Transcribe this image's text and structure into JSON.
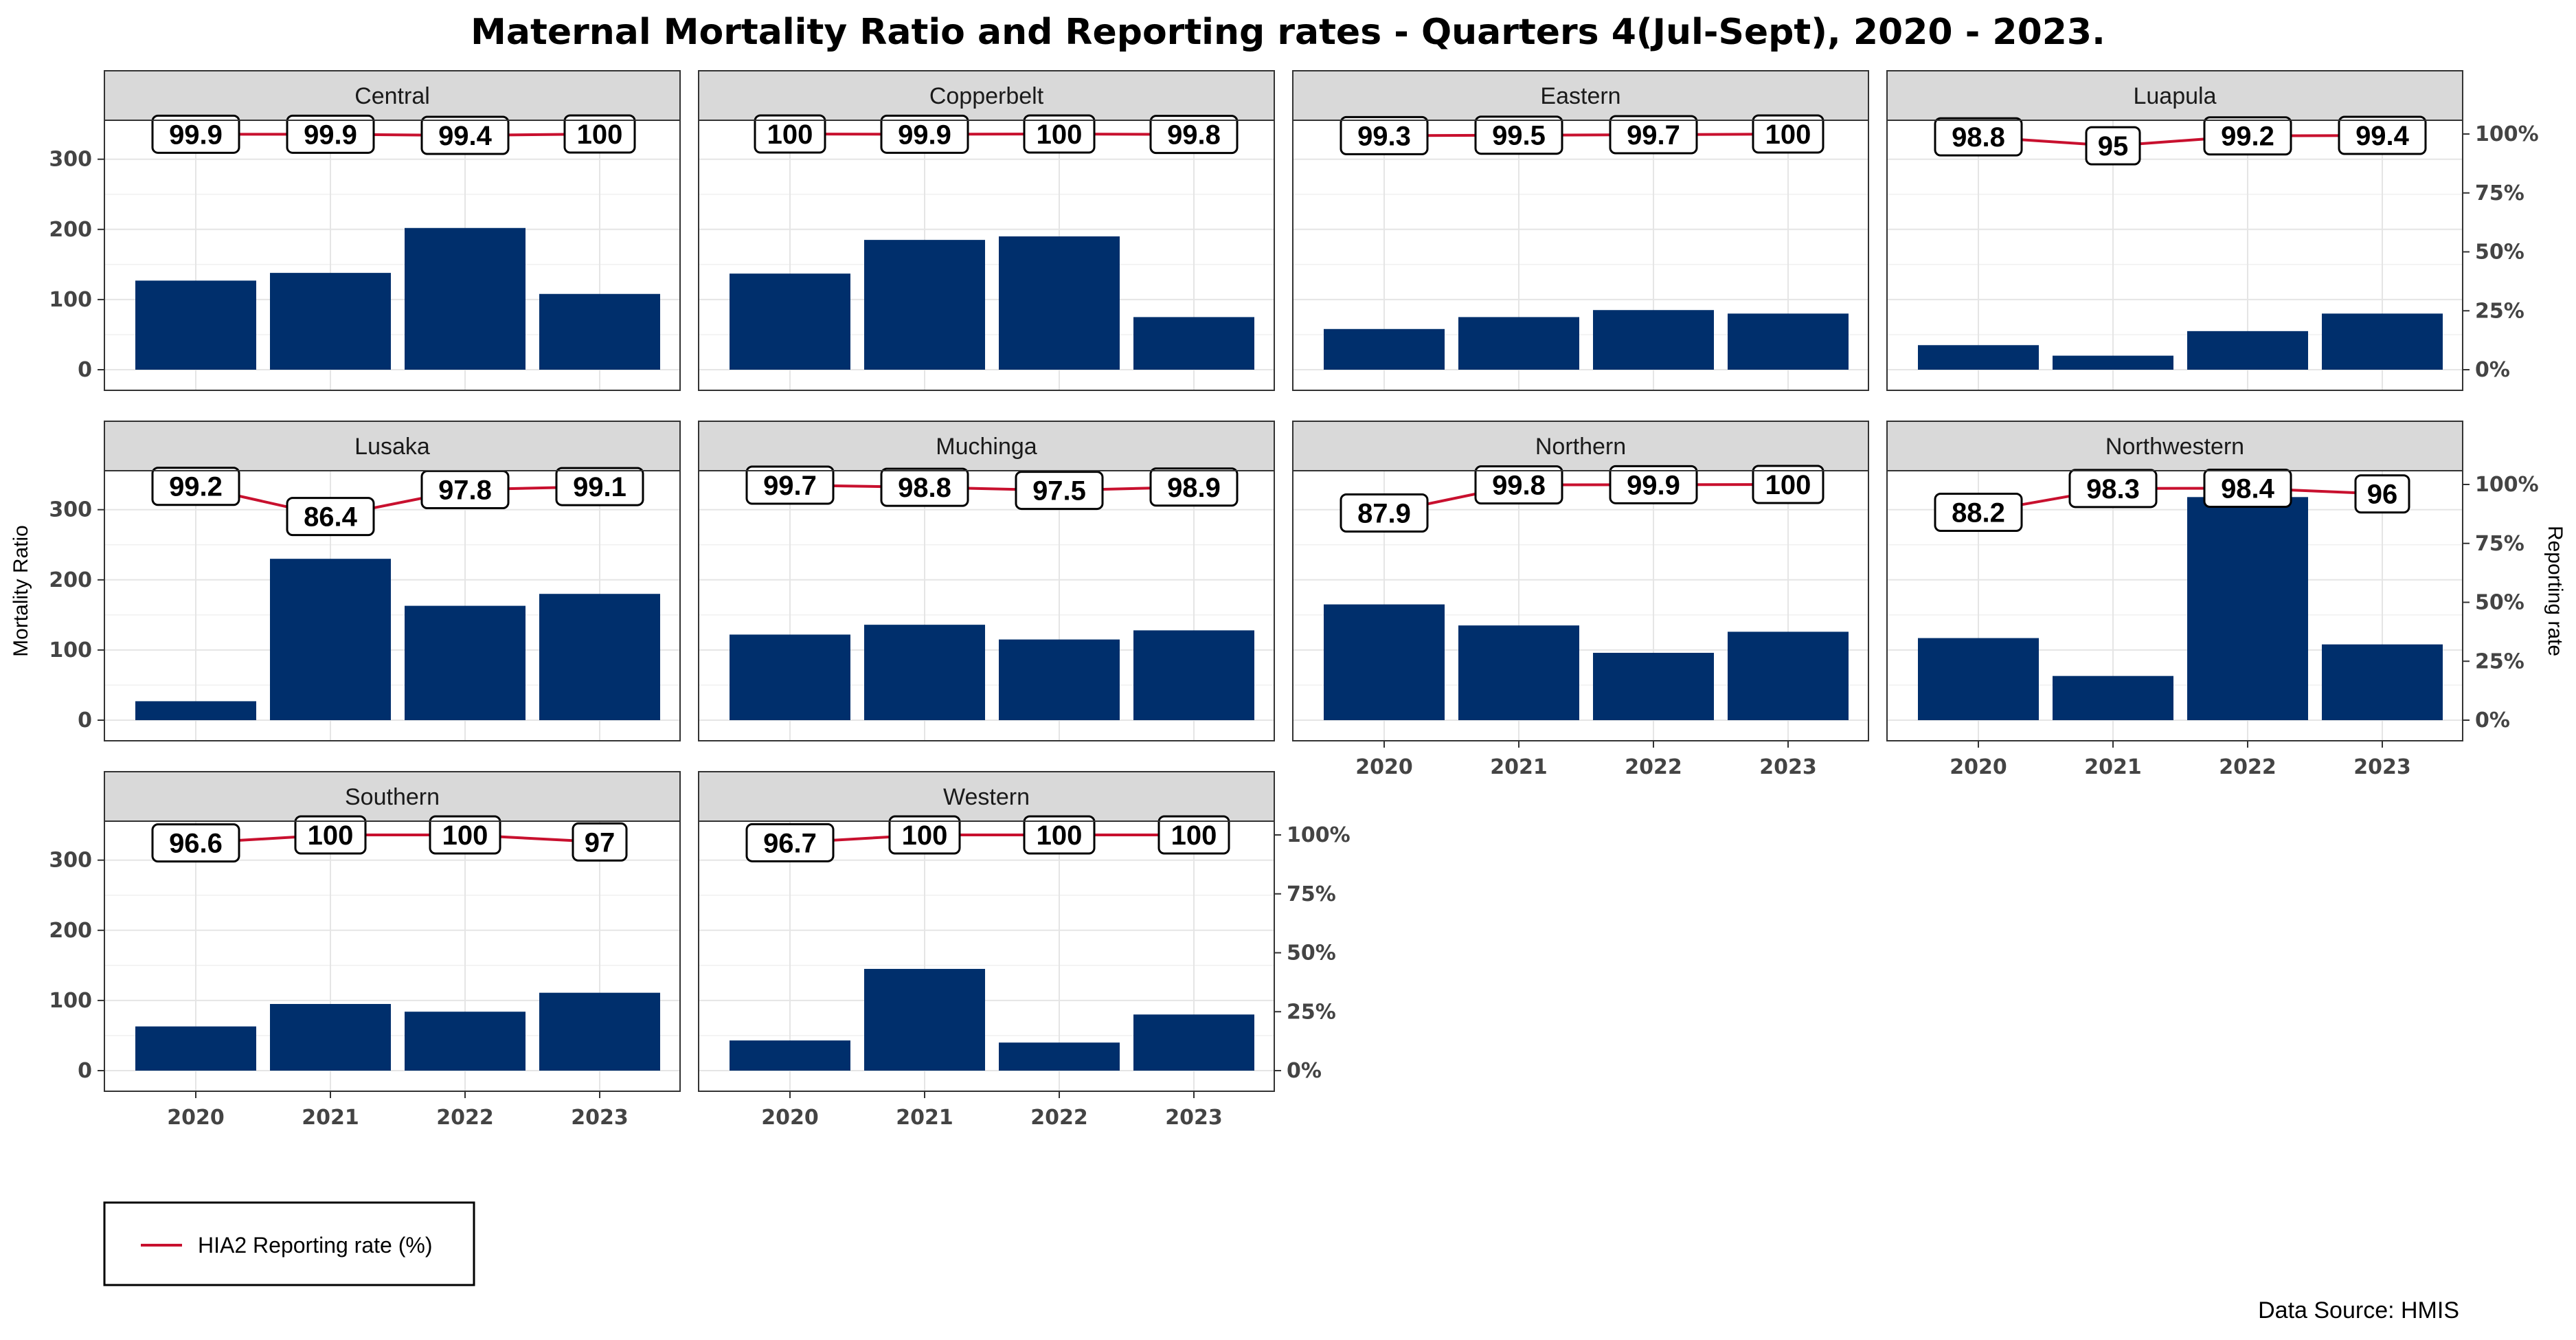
{
  "chart_data": {
    "type": "bar",
    "title": "Maternal Mortality Ratio and Reporting rates - Quarters 4(Jul-Sept), 2020 - 2023.",
    "ylabel": "Mortality Ratio",
    "y2label": "Reporting rate",
    "ylim": [
      0,
      350
    ],
    "y_ticks": [
      "0",
      "100",
      "200",
      "300"
    ],
    "y2_ticks": [
      "0%",
      "25%",
      "50%",
      "75%",
      "100%"
    ],
    "y2lim": [
      0,
      100
    ],
    "categories": [
      "2020",
      "2021",
      "2022",
      "2023"
    ],
    "bar_color": "#002f6c",
    "line_color": "#c8102e",
    "legend": {
      "label": "HIA2 Reporting rate (%)",
      "position": "bottom-left"
    },
    "source": "Data Source: HMIS",
    "grid": true,
    "panels": [
      {
        "name": "Central",
        "bars": [
          127,
          138,
          202,
          108
        ],
        "rates": [
          99.9,
          99.9,
          99.4,
          100
        ],
        "rate_labels": [
          "99.9",
          "99.9",
          "99.4",
          "100"
        ]
      },
      {
        "name": "Copperbelt",
        "bars": [
          137,
          185,
          190,
          75
        ],
        "rates": [
          100,
          99.9,
          100,
          99.8
        ],
        "rate_labels": [
          "100",
          "99.9",
          "100",
          "99.8"
        ]
      },
      {
        "name": "Eastern",
        "bars": [
          58,
          75,
          85,
          80
        ],
        "rates": [
          99.3,
          99.5,
          99.7,
          100
        ],
        "rate_labels": [
          "99.3",
          "99.5",
          "99.7",
          "100"
        ]
      },
      {
        "name": "Luapula",
        "bars": [
          35,
          20,
          55,
          80
        ],
        "rates": [
          98.8,
          95,
          99.2,
          99.4
        ],
        "rate_labels": [
          "98.8",
          "95",
          "99.2",
          "99.4"
        ]
      },
      {
        "name": "Lusaka",
        "bars": [
          27,
          230,
          163,
          180
        ],
        "rates": [
          99.2,
          86.4,
          97.8,
          99.1
        ],
        "rate_labels": [
          "99.2",
          "86.4",
          "97.8",
          "99.1"
        ]
      },
      {
        "name": "Muchinga",
        "bars": [
          122,
          136,
          115,
          128
        ],
        "rates": [
          99.7,
          98.8,
          97.5,
          98.9
        ],
        "rate_labels": [
          "99.7",
          "98.8",
          "97.5",
          "98.9"
        ]
      },
      {
        "name": "Northern",
        "bars": [
          165,
          135,
          96,
          126
        ],
        "rates": [
          87.9,
          99.8,
          99.9,
          100
        ],
        "rate_labels": [
          "87.9",
          "99.8",
          "99.9",
          "100"
        ]
      },
      {
        "name": "Northwestern",
        "bars": [
          117,
          63,
          318,
          108
        ],
        "rates": [
          88.2,
          98.3,
          98.4,
          96
        ],
        "rate_labels": [
          "88.2",
          "98.3",
          "98.4",
          "96"
        ]
      },
      {
        "name": "Southern",
        "bars": [
          63,
          95,
          84,
          111
        ],
        "rates": [
          96.6,
          100,
          100,
          97
        ],
        "rate_labels": [
          "96.6",
          "100",
          "100",
          "97"
        ]
      },
      {
        "name": "Western",
        "bars": [
          43,
          145,
          40,
          80
        ],
        "rates": [
          96.7,
          100,
          100,
          100
        ],
        "rate_labels": [
          "96.7",
          "100",
          "100",
          "100"
        ]
      }
    ]
  }
}
